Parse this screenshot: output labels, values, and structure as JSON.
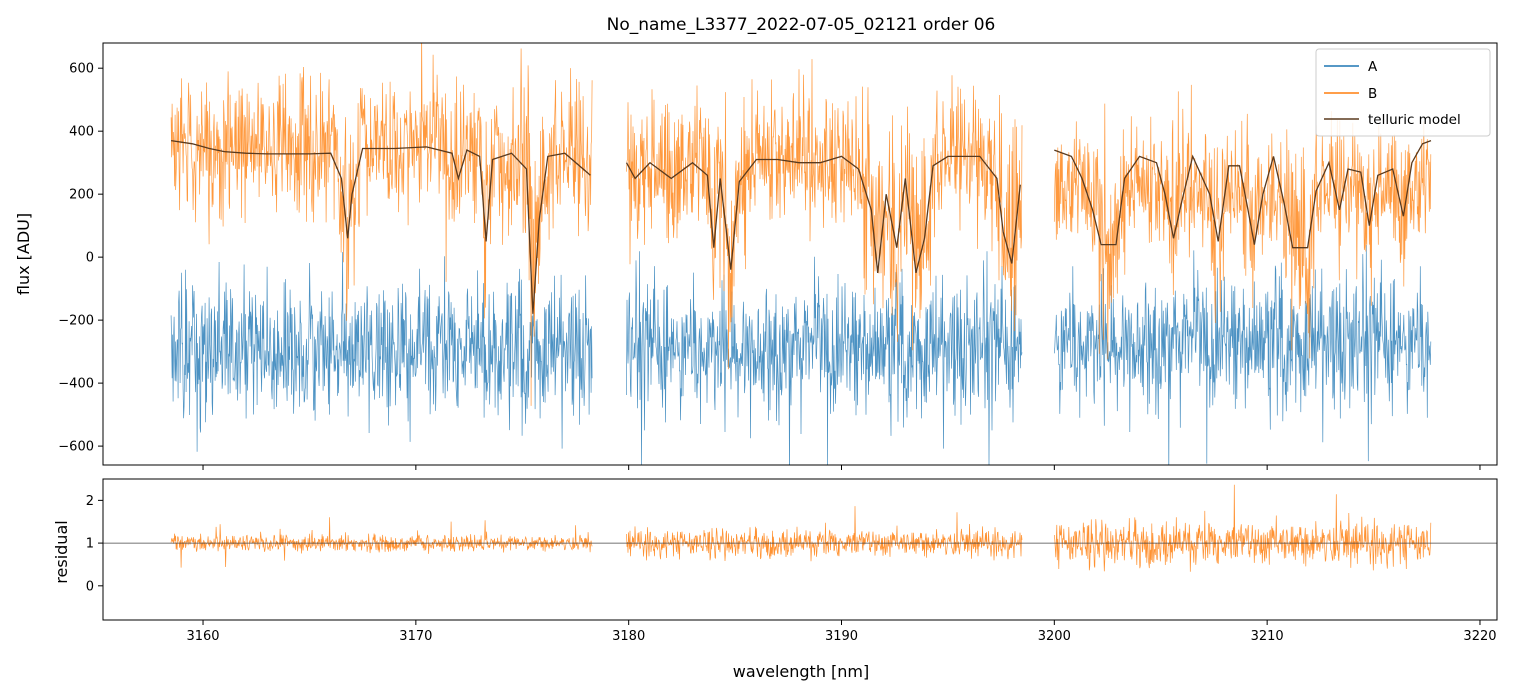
{
  "chart_data": {
    "type": "line",
    "title": "No_name_L3377_2022-07-05_02121  order 06",
    "xlabel": "wavelength [nm]",
    "colors": {
      "A": "#1f77b4",
      "B": "#ff7f0e",
      "telluric": "#5a3a1e",
      "residual_ref": "#444444",
      "axes": "#000000"
    },
    "x_ticks": [
      3160,
      3170,
      3180,
      3190,
      3200,
      3210,
      3220
    ],
    "x_tick_labels": [
      "3160",
      "3170",
      "3180",
      "3190",
      "3200",
      "3210",
      "3220"
    ],
    "xlim": [
      3155.3,
      3220.8
    ],
    "segments": [
      {
        "x": [
          3158.5,
          3178.3
        ],
        "a_level": -290,
        "b_level": 380,
        "resid_scale": 0.55
      },
      {
        "x": [
          3179.9,
          3198.5
        ],
        "a_level": -290,
        "b_level": 340,
        "resid_scale": 0.95
      },
      {
        "x": [
          3200.0,
          3217.7
        ],
        "a_level": -270,
        "b_level": 220,
        "resid_scale": 1.5
      }
    ],
    "top_panel": {
      "ylabel": "flux [ADU]",
      "ylim": [
        -660,
        680
      ],
      "y_ticks": [
        -600,
        -400,
        -200,
        0,
        200,
        400,
        600
      ],
      "y_tick_labels": [
        "−600",
        "−400",
        "−200",
        "0",
        "200",
        "400",
        "600"
      ],
      "legend": {
        "position": "top-right",
        "entries": [
          "A",
          "B",
          "telluric model"
        ]
      },
      "telluric_model": {
        "points": [
          [
            3158.5,
            370
          ],
          [
            3159.5,
            360
          ],
          [
            3160.3,
            345
          ],
          [
            3161.0,
            335
          ],
          [
            3162.0,
            330
          ],
          [
            3163.0,
            328
          ],
          [
            3165.0,
            328
          ],
          [
            3166.0,
            330
          ],
          [
            3166.5,
            250
          ],
          [
            3166.8,
            60
          ],
          [
            3167.0,
            200
          ],
          [
            3167.5,
            345
          ],
          [
            3169.0,
            345
          ],
          [
            3170.5,
            350
          ],
          [
            3171.7,
            330
          ],
          [
            3172.0,
            250
          ],
          [
            3172.4,
            340
          ],
          [
            3173.0,
            320
          ],
          [
            3173.3,
            50
          ],
          [
            3173.6,
            310
          ],
          [
            3174.5,
            330
          ],
          [
            3175.2,
            280
          ],
          [
            3175.5,
            -180
          ],
          [
            3175.8,
            120
          ],
          [
            3176.2,
            320
          ],
          [
            3177.0,
            330
          ],
          [
            3178.2,
            260
          ],
          [
            3179.9,
            300
          ],
          [
            3180.3,
            250
          ],
          [
            3181.0,
            300
          ],
          [
            3182.0,
            250
          ],
          [
            3183.0,
            300
          ],
          [
            3183.7,
            260
          ],
          [
            3184.0,
            30
          ],
          [
            3184.3,
            250
          ],
          [
            3184.8,
            -40
          ],
          [
            3185.2,
            240
          ],
          [
            3186.0,
            310
          ],
          [
            3187.0,
            310
          ],
          [
            3188.0,
            300
          ],
          [
            3189.0,
            300
          ],
          [
            3190.0,
            320
          ],
          [
            3190.8,
            280
          ],
          [
            3191.4,
            150
          ],
          [
            3191.7,
            -50
          ],
          [
            3192.1,
            200
          ],
          [
            3192.6,
            30
          ],
          [
            3193.0,
            250
          ],
          [
            3193.5,
            -50
          ],
          [
            3193.9,
            60
          ],
          [
            3194.3,
            290
          ],
          [
            3195.0,
            320
          ],
          [
            3196.5,
            320
          ],
          [
            3197.3,
            250
          ],
          [
            3197.6,
            80
          ],
          [
            3198.0,
            -20
          ],
          [
            3198.4,
            230
          ],
          [
            3200.0,
            340
          ],
          [
            3200.8,
            320
          ],
          [
            3201.3,
            250
          ],
          [
            3201.8,
            150
          ],
          [
            3202.2,
            40
          ],
          [
            3202.9,
            40
          ],
          [
            3203.3,
            250
          ],
          [
            3204.0,
            320
          ],
          [
            3204.8,
            300
          ],
          [
            3205.2,
            200
          ],
          [
            3205.6,
            60
          ],
          [
            3206.0,
            180
          ],
          [
            3206.5,
            320
          ],
          [
            3207.3,
            200
          ],
          [
            3207.7,
            50
          ],
          [
            3208.2,
            290
          ],
          [
            3208.7,
            290
          ],
          [
            3209.1,
            150
          ],
          [
            3209.4,
            40
          ],
          [
            3209.8,
            200
          ],
          [
            3210.3,
            320
          ],
          [
            3210.8,
            170
          ],
          [
            3211.2,
            30
          ],
          [
            3211.9,
            30
          ],
          [
            3212.3,
            210
          ],
          [
            3212.9,
            300
          ],
          [
            3213.4,
            150
          ],
          [
            3213.8,
            280
          ],
          [
            3214.4,
            270
          ],
          [
            3214.8,
            100
          ],
          [
            3215.2,
            260
          ],
          [
            3215.9,
            280
          ],
          [
            3216.4,
            130
          ],
          [
            3216.8,
            300
          ],
          [
            3217.3,
            360
          ],
          [
            3217.7,
            370
          ]
        ]
      }
    },
    "bottom_panel": {
      "ylabel": "residual",
      "ylim": [
        -0.8,
        2.5
      ],
      "y_ticks": [
        0,
        1,
        2
      ],
      "y_tick_labels": [
        "0",
        "1",
        "2"
      ],
      "reference_line": 1
    }
  }
}
